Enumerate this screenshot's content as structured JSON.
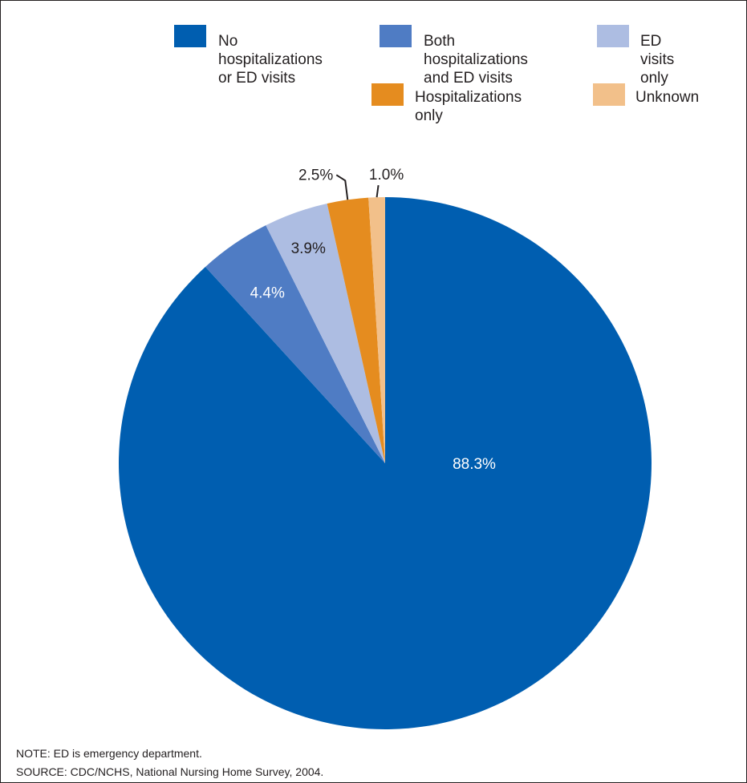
{
  "chart_data": {
    "type": "pie",
    "slices": [
      {
        "label": "No hospitalizations\nor ED visits",
        "value": 88.3,
        "value_label": "88.3%",
        "color": "#005eb0"
      },
      {
        "label": "Both hospitalizations\nand ED visits",
        "value": 4.4,
        "value_label": "4.4%",
        "color": "#4f7cc4"
      },
      {
        "label": "ED visits only",
        "value": 3.9,
        "value_label": "3.9%",
        "color": "#adbde2"
      },
      {
        "label": "Hospitalizations only",
        "value": 2.5,
        "value_label": "2.5%",
        "color": "#e58c1f"
      },
      {
        "label": "Unknown",
        "value": 1.0,
        "value_label": "1.0%",
        "color": "#f2c08a"
      }
    ],
    "legend_position": "top-right"
  },
  "notes": {
    "note": "NOTE: ED is emergency department.",
    "source": "SOURCE: CDC/NCHS, National Nursing Home Survey, 2004."
  }
}
